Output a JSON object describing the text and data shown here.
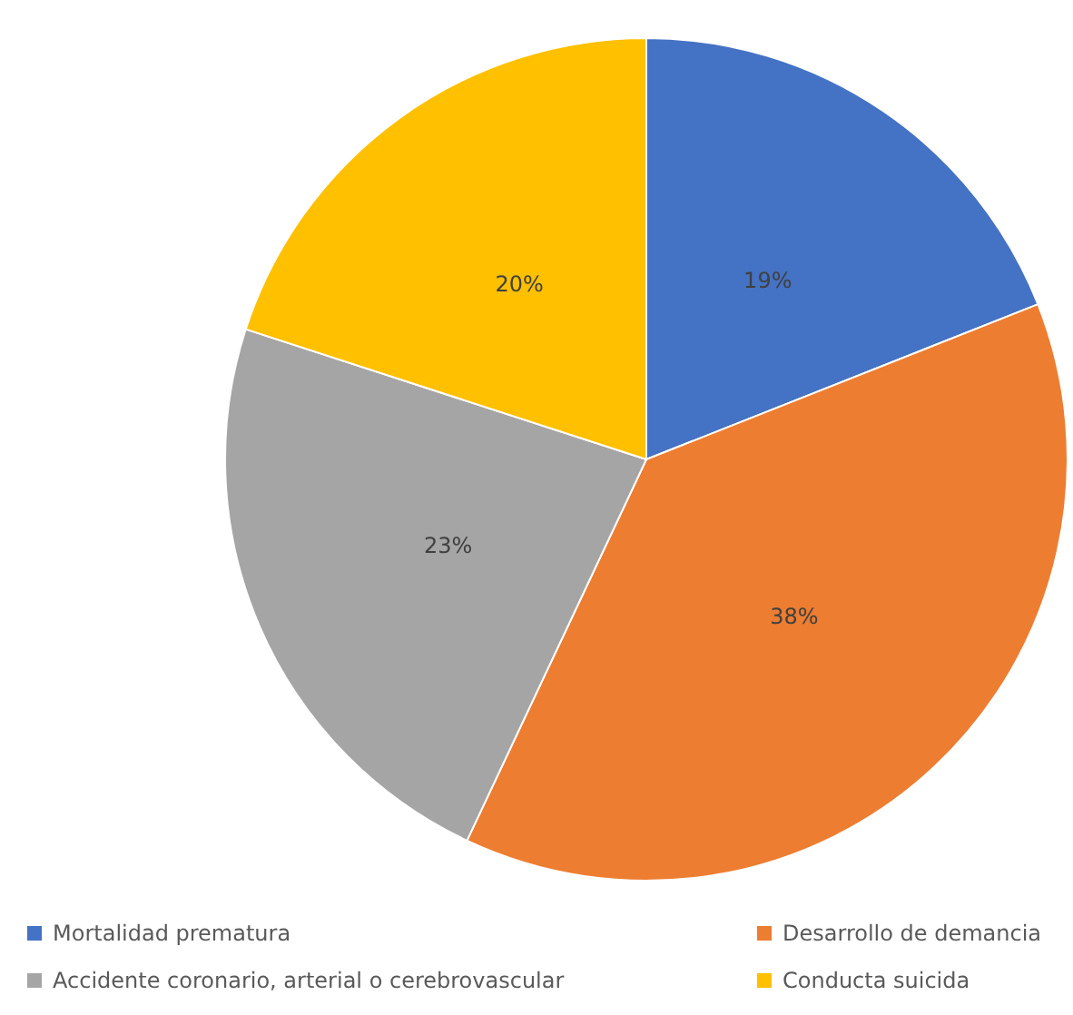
{
  "chart_data": {
    "type": "pie",
    "categories": [
      "Mortalidad prematura",
      "Desarrollo de demancia",
      "Accidente coronario, arterial o cerebrovascular",
      "Conducta suicida"
    ],
    "values": [
      19,
      38,
      23,
      20
    ],
    "colors": [
      "#4472c4",
      "#ed7d31",
      "#a5a5a5",
      "#ffc000"
    ],
    "value_labels": [
      "19%",
      "38%",
      "23%",
      "20%"
    ],
    "legend": "bottom"
  }
}
